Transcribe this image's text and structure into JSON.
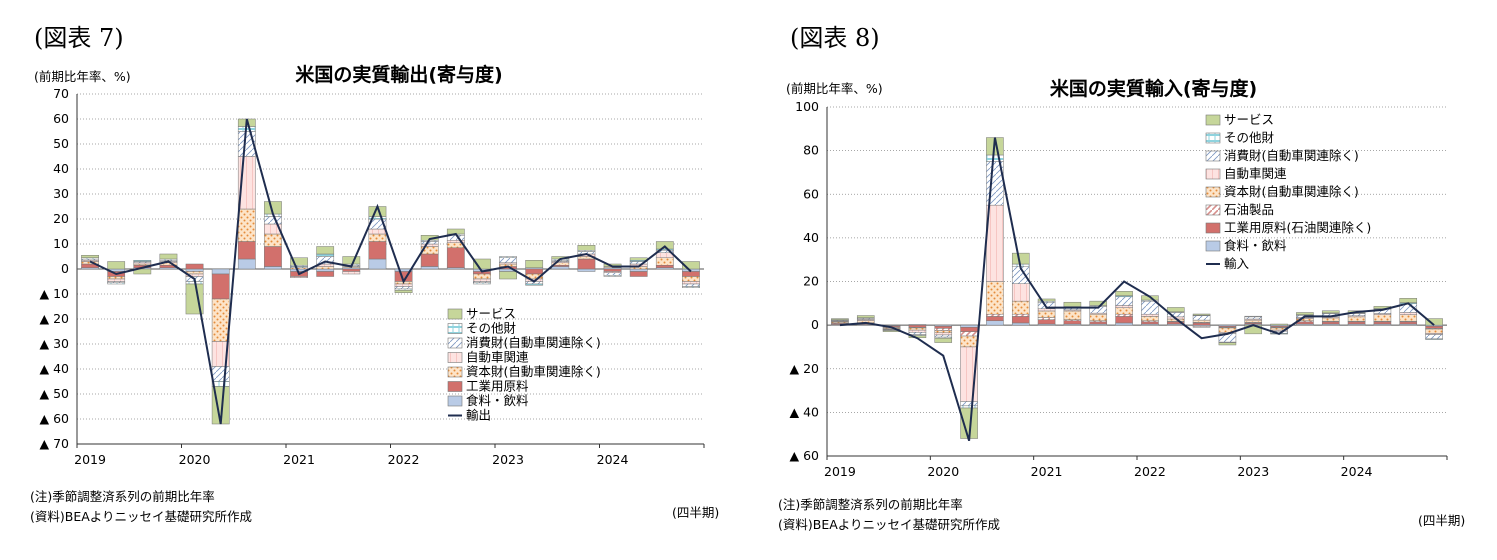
{
  "figures": [
    {
      "figure_label": "(図表 7)",
      "unit_label": "(前期比年率、%)",
      "note": "(注)季節調整済系列の前期比年率",
      "source": "(資料)BEAよりニッセイ基礎研究所作成",
      "quarter_label": "(四半期)"
    },
    {
      "figure_label": "(図表 8)",
      "unit_label": "(前期比年率、%)",
      "note": "(注)季節調整済系列の前期比年率",
      "source": "(資料)BEAよりニッセイ基礎研究所作成",
      "quarter_label": "(四半期)"
    }
  ],
  "colors": {
    "service": "#c6d69a",
    "other": "#8fd3de",
    "consumer": "#c9d9ec",
    "auto": "#f6c6c3",
    "capital": "#f7c18f",
    "petroleum": "#d78f8c",
    "industrial": "#d2706c",
    "food": "#b9cbe6",
    "line": "#1f2d4f"
  },
  "chart_data": [
    {
      "type": "bar",
      "stacked": true,
      "title": "米国の実質輸出(寄与度)",
      "ylim": [
        -70,
        70
      ],
      "yticks": [
        70,
        60,
        50,
        40,
        30,
        20,
        10,
        0,
        -10,
        -20,
        -30,
        -40,
        -50,
        -60,
        -70
      ],
      "ytick_labels": [
        "70",
        "60",
        "50",
        "40",
        "30",
        "20",
        "10",
        "0",
        "▲ 10",
        "▲ 20",
        "▲ 30",
        "▲ 40",
        "▲ 50",
        "▲ 60",
        "▲ 70"
      ],
      "year_labels": [
        "2019",
        "2020",
        "2021",
        "2022",
        "2023",
        "2024"
      ],
      "categories": [
        "2019Q1",
        "2019Q2",
        "2019Q3",
        "2019Q4",
        "2020Q1",
        "2020Q2",
        "2020Q3",
        "2020Q4",
        "2021Q1",
        "2021Q2",
        "2021Q3",
        "2021Q4",
        "2022Q1",
        "2022Q2",
        "2022Q3",
        "2022Q4",
        "2023Q1",
        "2023Q2",
        "2023Q3",
        "2023Q4",
        "2024Q1",
        "2024Q2",
        "2024Q3",
        "2024Q4"
      ],
      "grid": true,
      "legend_position": "lower-right",
      "series": [
        {
          "name": "食料・飲料",
          "key": "food",
          "values": [
            0.5,
            -1,
            0.5,
            0.5,
            -1,
            -2,
            4,
            1,
            -1,
            -1,
            0.5,
            4,
            -1,
            1,
            0.5,
            -1,
            -1,
            0.5,
            1,
            -1,
            0.5,
            -1,
            0.5,
            -1
          ]
        },
        {
          "name": "工業用原料",
          "key": "industrial",
          "values": [
            1.5,
            -2,
            1,
            1,
            2,
            -10,
            7,
            8,
            -2,
            -2,
            -1,
            7,
            -4,
            5,
            8,
            -1,
            1,
            -2,
            0.5,
            4,
            -1,
            -2,
            1,
            -2
          ]
        },
        {
          "name": "資本財(自動車関連除く)",
          "key": "capital",
          "values": [
            1,
            -1,
            0.5,
            1,
            -1,
            -17,
            13,
            5,
            0.5,
            1,
            0.5,
            3,
            -1,
            3,
            2,
            -2,
            1,
            -2,
            1,
            1,
            0.5,
            1,
            3,
            -2
          ]
        },
        {
          "name": "自動車関連",
          "key": "auto",
          "values": [
            0.5,
            -1,
            0.5,
            0.5,
            -1,
            -10,
            21,
            4,
            -0.5,
            1,
            -1,
            2,
            -1,
            1,
            1,
            -1,
            0.5,
            -1,
            0.5,
            1,
            -0.5,
            1,
            2,
            -1
          ]
        },
        {
          "name": "消費財(自動車関連除く)",
          "key": "consumer",
          "values": [
            0.5,
            -0.5,
            0.5,
            0.5,
            -2,
            -6,
            10,
            3,
            0.5,
            3,
            0.5,
            4,
            -1,
            1,
            2,
            -0.5,
            2,
            -1,
            0.5,
            1,
            -1,
            1,
            1,
            -1
          ]
        },
        {
          "name": "その他財",
          "key": "other",
          "values": [
            0.5,
            -0.5,
            0.5,
            0.5,
            -1,
            -2,
            2,
            1,
            0.5,
            1,
            0.5,
            1,
            -0.5,
            0.5,
            0.5,
            -0.5,
            0.5,
            -0.5,
            0.5,
            0.5,
            -0.5,
            0.5,
            0.5,
            -0.5
          ]
        },
        {
          "name": "サービス",
          "key": "service",
          "values": [
            1,
            3,
            -2,
            2,
            -12,
            -15,
            3,
            5,
            3,
            3,
            3,
            4,
            -1,
            2,
            2,
            4,
            -3,
            3,
            1,
            2,
            1,
            1,
            3,
            3
          ]
        }
      ],
      "line_series": {
        "name": "輸出",
        "values": [
          3,
          -2,
          0.5,
          3,
          -4,
          -62,
          60,
          22,
          -2,
          3,
          1,
          25,
          -5,
          12,
          14,
          -1,
          1,
          -5,
          4,
          6,
          1,
          1,
          9,
          -1
        ]
      }
    },
    {
      "type": "bar",
      "stacked": true,
      "title": "米国の実質輸入(寄与度)",
      "ylim": [
        -60,
        100
      ],
      "yticks": [
        100,
        80,
        60,
        40,
        20,
        0,
        -20,
        -40,
        -60
      ],
      "ytick_labels": [
        "100",
        "80",
        "60",
        "40",
        "20",
        "0",
        "▲ 20",
        "▲ 40",
        "▲ 60"
      ],
      "year_labels": [
        "2019",
        "2020",
        "2021",
        "2022",
        "2023",
        "2024"
      ],
      "categories": [
        "2019Q1",
        "2019Q2",
        "2019Q3",
        "2019Q4",
        "2020Q1",
        "2020Q2",
        "2020Q3",
        "2020Q4",
        "2021Q1",
        "2021Q2",
        "2021Q3",
        "2021Q4",
        "2022Q1",
        "2022Q2",
        "2022Q3",
        "2022Q4",
        "2023Q1",
        "2023Q2",
        "2023Q3",
        "2023Q4",
        "2024Q1",
        "2024Q2",
        "2024Q3",
        "2024Q4"
      ],
      "grid": true,
      "legend_position": "top-right",
      "series": [
        {
          "name": "食料・飲料",
          "key": "food",
          "values": [
            0.3,
            0.3,
            -0.3,
            0.3,
            -0.5,
            -1,
            2,
            1,
            0.5,
            0.5,
            0.5,
            1,
            0.5,
            0.5,
            -0.5,
            -0.5,
            0.5,
            -0.5,
            0.5,
            0.5,
            0.5,
            0.5,
            0.5,
            -0.5
          ]
        },
        {
          "name": "工業用原料(石油関連除く)",
          "key": "industrial",
          "values": [
            0.5,
            0.5,
            -0.5,
            -1,
            -1,
            -2,
            2,
            3,
            2,
            1.5,
            1,
            3,
            1,
            1,
            1,
            -0.5,
            0.5,
            -0.5,
            1,
            1,
            1,
            1,
            1,
            -1
          ]
        },
        {
          "name": "石油製品",
          "key": "petroleum",
          "values": [
            0.3,
            0.3,
            -0.3,
            -0.3,
            -1,
            -2,
            1,
            1,
            1,
            0.5,
            0.5,
            1,
            0.5,
            0.3,
            0.3,
            -0.3,
            0.3,
            -0.3,
            0.5,
            0.3,
            0.3,
            0.3,
            0.3,
            -0.3
          ]
        },
        {
          "name": "資本財(自動車関連除く)",
          "key": "capital",
          "values": [
            0.5,
            1,
            -0.5,
            -1,
            -1,
            -5,
            15,
            6,
            3,
            4,
            3,
            3,
            2,
            1,
            1,
            -2,
            1,
            -1,
            1,
            1.5,
            2,
            3,
            3,
            -2
          ]
        },
        {
          "name": "自動車関連",
          "key": "auto",
          "values": [
            0.3,
            0.5,
            -0.3,
            -1,
            -1,
            -25,
            35,
            8,
            1,
            0.5,
            0.5,
            1,
            1,
            1,
            -0.5,
            -0.5,
            0.5,
            -0.5,
            0.5,
            0.5,
            0.5,
            0.5,
            1,
            -0.5
          ]
        },
        {
          "name": "消費財(自動車関連除く)",
          "key": "consumer",
          "values": [
            0.3,
            0.5,
            -0.3,
            -1,
            -1,
            -2,
            20,
            8,
            3,
            1,
            3,
            4,
            6,
            2,
            2,
            -4,
            1,
            -1,
            1,
            1.5,
            1,
            2,
            4,
            -2
          ]
        },
        {
          "name": "その他財",
          "key": "other",
          "values": [
            0.3,
            0.3,
            -0.3,
            -0.5,
            -0.5,
            -1,
            3,
            1,
            0.5,
            0.5,
            0.5,
            0.5,
            0.5,
            0.3,
            0.3,
            -0.3,
            0.3,
            -0.3,
            0.3,
            0.3,
            0.3,
            0.3,
            0.5,
            -0.3
          ]
        },
        {
          "name": "サービス",
          "key": "service",
          "values": [
            0.5,
            1,
            -0.5,
            -1,
            -2,
            -14,
            8,
            5,
            1,
            2,
            2,
            2,
            2,
            2,
            0.5,
            -1,
            -4,
            0.5,
            1,
            1,
            1,
            1,
            2,
            3
          ]
        }
      ],
      "line_series": {
        "name": "輸入",
        "values": [
          0,
          1,
          -1,
          -6,
          -14,
          -53,
          86,
          26,
          8,
          8,
          8,
          20,
          13,
          3,
          -6,
          -4,
          0,
          -4,
          4,
          4,
          6,
          7,
          10,
          0
        ]
      }
    }
  ]
}
